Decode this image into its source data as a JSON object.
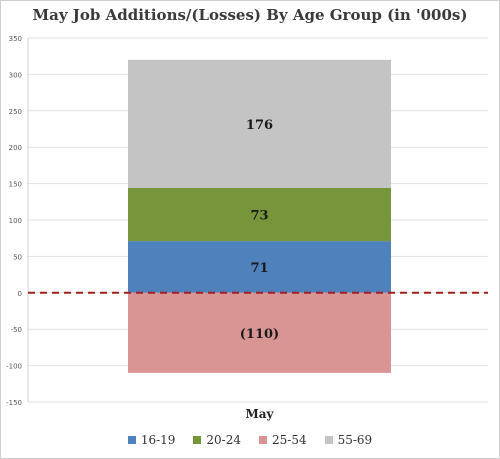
{
  "chart_data": {
    "type": "bar",
    "stacked": true,
    "title": "May Job Additions/(Losses) By Age Group (in '000s)",
    "categories": [
      "May"
    ],
    "series": [
      {
        "name": "16-19",
        "values": [
          71
        ],
        "label": "71",
        "color": "#4f81bd"
      },
      {
        "name": "20-24",
        "values": [
          73
        ],
        "label": "73",
        "color": "#77953a"
      },
      {
        "name": "25-54",
        "values": [
          -110
        ],
        "label": "(110)",
        "color": "#d99594"
      },
      {
        "name": "55-69",
        "values": [
          176
        ],
        "label": "176",
        "color": "#c4c4c4"
      }
    ],
    "ylim": [
      -150,
      350
    ],
    "yticks": [
      350,
      300,
      250,
      200,
      150,
      100,
      50,
      0,
      -50,
      -100,
      -150
    ],
    "zero_line": {
      "style": "dashed",
      "color": "#a02020"
    },
    "grid": true,
    "legend": "bottom"
  }
}
